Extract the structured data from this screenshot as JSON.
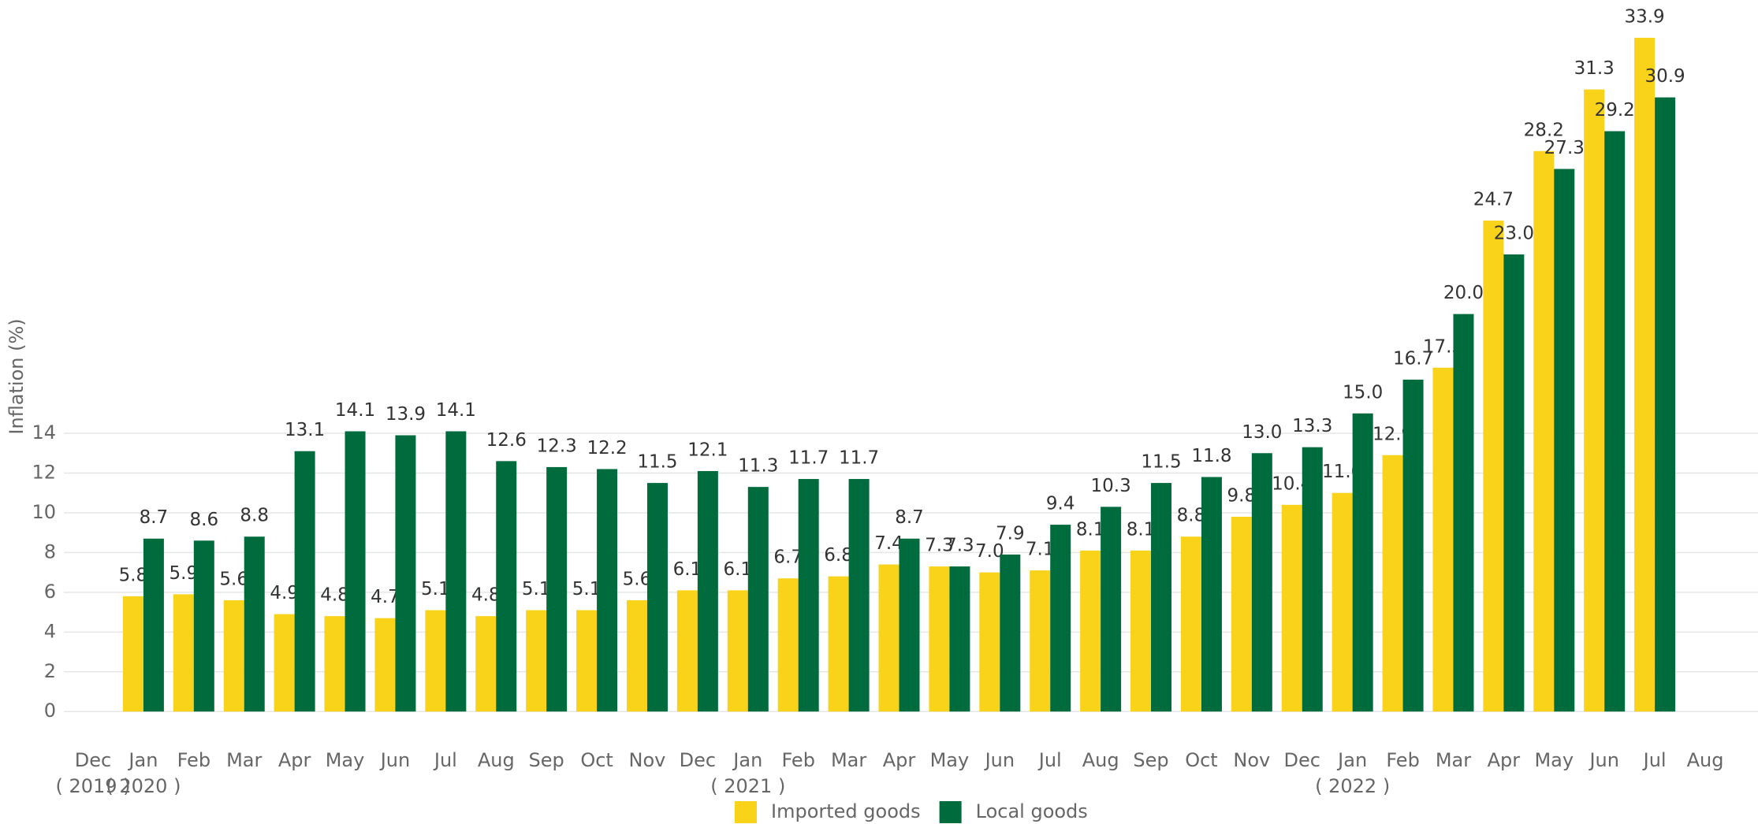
{
  "chart_data": {
    "type": "bar",
    "y_label": "Inflation (%)",
    "categories": [
      "Dec",
      "Jan",
      "Feb",
      "Mar",
      "Apr",
      "May",
      "Jun",
      "Jul",
      "Aug",
      "Sep",
      "Oct",
      "Nov",
      "Dec",
      "Jan",
      "Feb",
      "Mar",
      "Apr",
      "May",
      "Jun",
      "Jul",
      "Aug",
      "Sep",
      "Oct",
      "Nov",
      "Dec",
      "Jan",
      "Feb",
      "Mar",
      "Apr",
      "May",
      "Jun",
      "Jul",
      "Aug"
    ],
    "years": [
      "( 2019 )",
      "( 2020 )",
      null,
      null,
      null,
      null,
      null,
      null,
      null,
      null,
      null,
      null,
      null,
      "( 2021 )",
      null,
      null,
      null,
      null,
      null,
      null,
      null,
      null,
      null,
      null,
      null,
      "( 2022 )",
      null,
      null,
      null,
      null,
      null,
      null,
      null
    ],
    "series": [
      {
        "name": "Imported goods",
        "color": "#F9D21A",
        "values": [
          null,
          5.8,
          5.9,
          5.6,
          4.9,
          4.8,
          4.7,
          5.1,
          4.8,
          5.1,
          5.1,
          5.6,
          6.1,
          6.1,
          6.7,
          6.8,
          7.4,
          7.3,
          7.0,
          7.1,
          8.1,
          8.1,
          8.8,
          9.8,
          10.4,
          11.0,
          12.9,
          17.3,
          24.7,
          28.2,
          31.3,
          33.9,
          null
        ],
        "value_labels": [
          null,
          "5.8",
          "5.9",
          "5.6",
          "4.9",
          "4.8",
          "4.7",
          "5.1",
          "4.8",
          "5.1",
          "5.1",
          "5.6",
          "6.1",
          "6.1",
          "6.7",
          "6.8",
          "7.4",
          "7.3",
          "7.0",
          "7.1",
          "8.1",
          "8.1",
          "8.8",
          "9.8",
          "10.4",
          "11.0",
          "12.9",
          "17.3",
          "24.7",
          "28.2",
          "31.3",
          "33.9",
          null
        ]
      },
      {
        "name": "Local goods",
        "color": "#006B3C",
        "values": [
          null,
          8.7,
          8.6,
          8.8,
          13.1,
          14.1,
          13.9,
          14.1,
          12.6,
          12.3,
          12.2,
          11.5,
          12.1,
          11.3,
          11.7,
          11.7,
          8.7,
          7.3,
          7.9,
          9.4,
          10.3,
          11.5,
          11.8,
          13.0,
          13.3,
          15.0,
          16.7,
          20.0,
          23.0,
          27.3,
          29.2,
          30.9,
          null
        ],
        "value_labels": [
          null,
          "8.7",
          "8.6",
          "8.8",
          "13.1",
          "14.1",
          "13.9",
          "14.1",
          "12.6",
          "12.3",
          "12.2",
          "11.5",
          "12.1",
          "11.3",
          "11.7",
          "11.7",
          "8.7",
          "7.3",
          "7.9",
          "9.4",
          "10.3",
          "11.5",
          "11.8",
          "13.0",
          "13.3",
          "15.0",
          "16.7",
          "20.0",
          "23.0",
          "27.3",
          "29.2",
          "30.9",
          null
        ]
      }
    ],
    "ylim": [
      -1.1,
      35.8
    ],
    "yticks": [
      0,
      2,
      4,
      6,
      8,
      10,
      12,
      14
    ],
    "grid": true,
    "legend": "bottom"
  }
}
